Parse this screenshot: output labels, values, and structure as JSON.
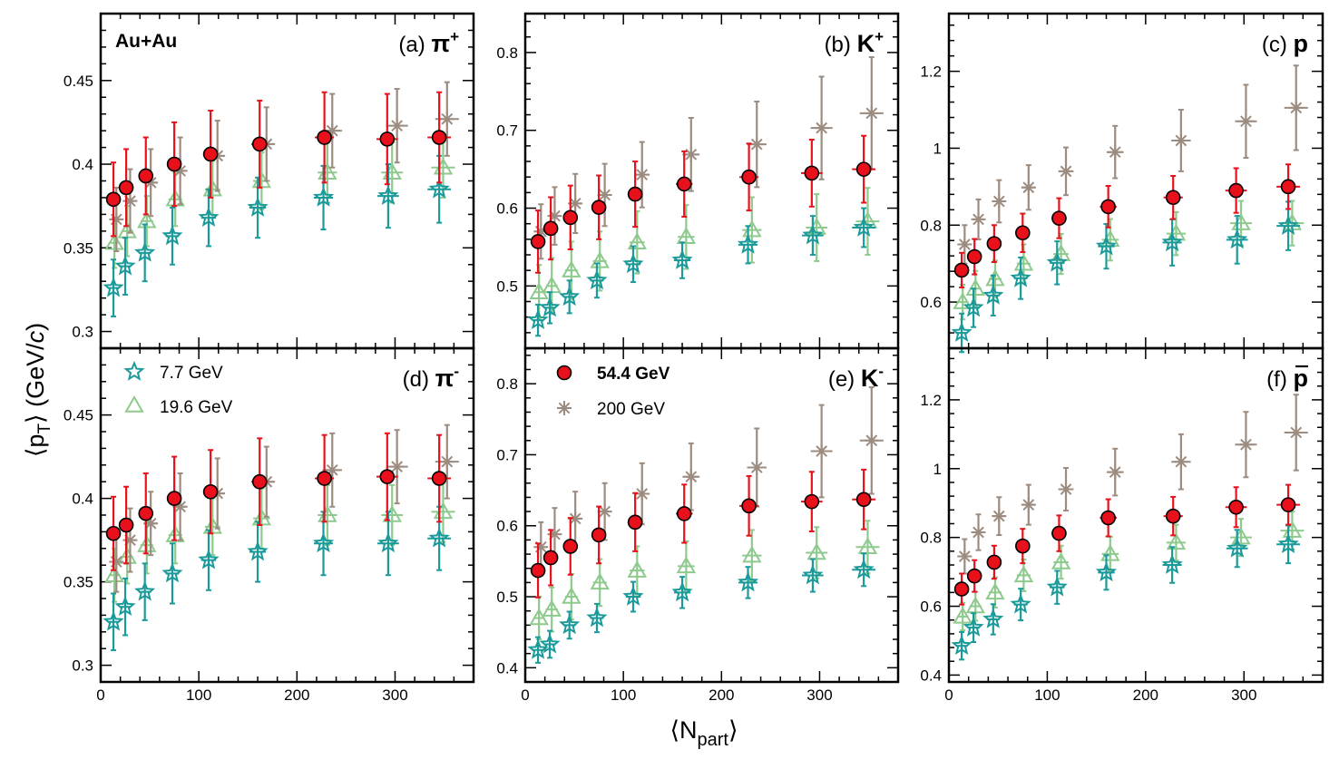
{
  "figure": {
    "y_axis_title": {
      "open": "⟨p",
      "sub": "T",
      "close": "⟩ (GeV/",
      "italic": "c",
      "end": ")"
    },
    "x_axis_title": {
      "open": "⟨N",
      "sub": "part",
      "close": "⟩"
    },
    "system_label": "Au+Au"
  },
  "legend": {
    "e77": "7.7 GeV",
    "e196": "19.6 GeV",
    "e544": "54.4 GeV",
    "e200": "200 GeV"
  },
  "colors": {
    "e77": "#1a9a9a",
    "e196": "#8ec98e",
    "e544": "#e8101a",
    "e200": "#9c8c80",
    "e544_legend_text": "#e8101a"
  },
  "chart_data": [
    {
      "id": "a",
      "type": "scatter",
      "label": "(a)",
      "particle": "π",
      "charge": "+",
      "xlabel": "⟨N_part⟩",
      "ylabel": "⟨p_T⟩ (GeV/c)",
      "xlim": [
        0,
        380
      ],
      "ylim": [
        0.29,
        0.49
      ],
      "xticks": [],
      "yticks": [
        0.3,
        0.35,
        0.4,
        0.45
      ],
      "ytick_labels": [
        "0.3",
        "0.35",
        "0.4",
        "0.45"
      ],
      "series": [
        {
          "key": "e77",
          "marker": "star",
          "x": [
            13,
            25,
            45,
            73,
            110,
            160,
            227,
            293,
            345
          ],
          "y": [
            0.326,
            0.339,
            0.347,
            0.357,
            0.368,
            0.374,
            0.38,
            0.381,
            0.385
          ],
          "err": [
            0.017,
            0.017,
            0.017,
            0.017,
            0.017,
            0.018,
            0.019,
            0.019,
            0.02
          ]
        },
        {
          "key": "e196",
          "marker": "triangle",
          "x": [
            14,
            27,
            47,
            76,
            114,
            164,
            231,
            297,
            349
          ],
          "y": [
            0.353,
            0.36,
            0.366,
            0.379,
            0.385,
            0.39,
            0.395,
            0.395,
            0.398
          ],
          "err": [
            0.015,
            0.015,
            0.015,
            0.016,
            0.017,
            0.017,
            0.018,
            0.018,
            0.018
          ]
        },
        {
          "key": "e544",
          "marker": "circle",
          "x": [
            13,
            26,
            46,
            75,
            112,
            162,
            228,
            292,
            345
          ],
          "y": [
            0.379,
            0.386,
            0.393,
            0.4,
            0.406,
            0.412,
            0.416,
            0.415,
            0.416
          ],
          "err": [
            0.022,
            0.023,
            0.023,
            0.025,
            0.026,
            0.026,
            0.027,
            0.027,
            0.027
          ]
        },
        {
          "key": "e200",
          "marker": "asterisk",
          "x": [
            16,
            30,
            51,
            81,
            119,
            169,
            236,
            302,
            353
          ],
          "y": [
            0.367,
            0.378,
            0.389,
            0.396,
            0.405,
            0.412,
            0.42,
            0.423,
            0.427
          ],
          "err": [
            0.019,
            0.019,
            0.02,
            0.02,
            0.021,
            0.022,
            0.022,
            0.022,
            0.022
          ]
        }
      ]
    },
    {
      "id": "b",
      "type": "scatter",
      "label": "(b)",
      "particle": "K",
      "charge": "+",
      "xlabel": "⟨N_part⟩",
      "ylabel": "⟨p_T⟩ (GeV/c)",
      "xlim": [
        0,
        380
      ],
      "ylim": [
        0.42,
        0.85
      ],
      "xticks": [],
      "yticks": [
        0.5,
        0.6,
        0.7,
        0.8
      ],
      "ytick_labels": [
        "0.5",
        "0.6",
        "0.7",
        "0.8"
      ],
      "series": [
        {
          "key": "e77",
          "marker": "star",
          "x": [
            13,
            25,
            45,
            73,
            110,
            160,
            227,
            293,
            345
          ],
          "y": [
            0.456,
            0.472,
            0.486,
            0.507,
            0.528,
            0.533,
            0.553,
            0.565,
            0.575
          ],
          "err": [
            0.02,
            0.02,
            0.021,
            0.022,
            0.023,
            0.023,
            0.024,
            0.025,
            0.025
          ]
        },
        {
          "key": "e196",
          "marker": "triangle",
          "x": [
            14,
            27,
            47,
            76,
            114,
            164,
            231,
            297,
            349
          ],
          "y": [
            0.492,
            0.5,
            0.52,
            0.532,
            0.556,
            0.563,
            0.572,
            0.575,
            0.583
          ],
          "err": [
            0.035,
            0.036,
            0.037,
            0.038,
            0.04,
            0.041,
            0.042,
            0.043,
            0.043
          ]
        },
        {
          "key": "e544",
          "marker": "circle",
          "x": [
            13,
            26,
            46,
            75,
            112,
            162,
            228,
            292,
            345
          ],
          "y": [
            0.557,
            0.574,
            0.588,
            0.601,
            0.618,
            0.631,
            0.64,
            0.645,
            0.65
          ],
          "err": [
            0.04,
            0.04,
            0.041,
            0.041,
            0.042,
            0.042,
            0.043,
            0.043,
            0.043
          ]
        },
        {
          "key": "e200",
          "marker": "asterisk",
          "x": [
            16,
            30,
            51,
            81,
            119,
            169,
            236,
            302,
            353
          ],
          "y": [
            0.57,
            0.59,
            0.606,
            0.617,
            0.643,
            0.669,
            0.682,
            0.703,
            0.722
          ],
          "err": [
            0.035,
            0.037,
            0.038,
            0.04,
            0.042,
            0.047,
            0.055,
            0.066,
            0.072
          ]
        }
      ]
    },
    {
      "id": "c",
      "type": "scatter",
      "label": "(c)",
      "particle": "p",
      "charge": "",
      "xlabel": "⟨N_part⟩",
      "ylabel": "⟨p_T⟩ (GeV/c)",
      "xlim": [
        0,
        380
      ],
      "ylim": [
        0.48,
        1.35
      ],
      "xticks": [],
      "yticks": [
        0.6,
        0.8,
        1.0,
        1.2
      ],
      "ytick_labels": [
        "0.6",
        "0.8",
        "1",
        "1.2"
      ],
      "series": [
        {
          "key": "e77",
          "marker": "star",
          "x": [
            13,
            25,
            45,
            73,
            110,
            160,
            227,
            293,
            345
          ],
          "y": [
            0.52,
            0.585,
            0.617,
            0.662,
            0.702,
            0.745,
            0.755,
            0.762,
            0.798
          ],
          "err": [
            0.05,
            0.05,
            0.052,
            0.054,
            0.056,
            0.058,
            0.06,
            0.062,
            0.063
          ]
        },
        {
          "key": "e196",
          "marker": "triangle",
          "x": [
            14,
            27,
            47,
            76,
            114,
            164,
            231,
            297,
            349
          ],
          "y": [
            0.6,
            0.635,
            0.66,
            0.7,
            0.725,
            0.762,
            0.778,
            0.805,
            0.805
          ],
          "err": [
            0.045,
            0.046,
            0.048,
            0.05,
            0.052,
            0.054,
            0.056,
            0.058,
            0.058
          ]
        },
        {
          "key": "e544",
          "marker": "circle",
          "x": [
            13,
            26,
            46,
            75,
            112,
            162,
            228,
            292,
            345
          ],
          "y": [
            0.683,
            0.718,
            0.752,
            0.78,
            0.818,
            0.848,
            0.872,
            0.89,
            0.9
          ],
          "err": [
            0.045,
            0.046,
            0.048,
            0.05,
            0.052,
            0.054,
            0.056,
            0.058,
            0.058
          ]
        },
        {
          "key": "e200",
          "marker": "asterisk",
          "x": [
            16,
            30,
            51,
            81,
            119,
            169,
            236,
            302,
            353
          ],
          "y": [
            0.75,
            0.815,
            0.862,
            0.898,
            0.94,
            0.99,
            1.02,
            1.07,
            1.105
          ],
          "err": [
            0.05,
            0.052,
            0.055,
            0.058,
            0.062,
            0.068,
            0.08,
            0.095,
            0.11
          ]
        }
      ]
    },
    {
      "id": "d",
      "type": "scatter",
      "label": "(d)",
      "particle": "π",
      "charge": "-",
      "xlabel": "⟨N_part⟩",
      "ylabel": "⟨p_T⟩ (GeV/c)",
      "xlim": [
        0,
        380
      ],
      "ylim": [
        0.29,
        0.49
      ],
      "xticks": [
        0,
        100,
        200,
        300
      ],
      "xtick_labels": [
        "0",
        "100",
        "200",
        "300"
      ],
      "yticks": [
        0.3,
        0.35,
        0.4,
        0.45
      ],
      "ytick_labels": [
        "0.3",
        "0.35",
        "0.4",
        "0.45"
      ],
      "series": [
        {
          "key": "e77",
          "marker": "star",
          "x": [
            13,
            25,
            45,
            73,
            110,
            160,
            227,
            293,
            345
          ],
          "y": [
            0.326,
            0.335,
            0.344,
            0.355,
            0.363,
            0.368,
            0.373,
            0.373,
            0.376
          ],
          "err": [
            0.017,
            0.017,
            0.017,
            0.018,
            0.018,
            0.018,
            0.019,
            0.019,
            0.019
          ]
        },
        {
          "key": "e196",
          "marker": "triangle",
          "x": [
            14,
            27,
            47,
            76,
            114,
            164,
            231,
            297,
            349
          ],
          "y": [
            0.354,
            0.365,
            0.372,
            0.378,
            0.383,
            0.388,
            0.39,
            0.39,
            0.392
          ],
          "err": [
            0.016,
            0.016,
            0.017,
            0.017,
            0.017,
            0.018,
            0.018,
            0.018,
            0.018
          ]
        },
        {
          "key": "e544",
          "marker": "circle",
          "x": [
            13,
            26,
            46,
            75,
            112,
            162,
            228,
            292,
            345
          ],
          "y": [
            0.379,
            0.384,
            0.391,
            0.4,
            0.404,
            0.41,
            0.412,
            0.413,
            0.412
          ],
          "err": [
            0.022,
            0.023,
            0.024,
            0.025,
            0.025,
            0.026,
            0.026,
            0.026,
            0.026
          ]
        },
        {
          "key": "e200",
          "marker": "asterisk",
          "x": [
            16,
            30,
            51,
            81,
            119,
            169,
            236,
            302,
            353
          ],
          "y": [
            0.362,
            0.375,
            0.385,
            0.395,
            0.403,
            0.41,
            0.417,
            0.419,
            0.422
          ],
          "err": [
            0.018,
            0.019,
            0.019,
            0.02,
            0.021,
            0.021,
            0.022,
            0.022,
            0.022
          ]
        }
      ]
    },
    {
      "id": "e",
      "type": "scatter",
      "label": "(e)",
      "particle": "K",
      "charge": "-",
      "xlabel": "⟨N_part⟩",
      "ylabel": "⟨p_T⟩ (GeV/c)",
      "xlim": [
        0,
        380
      ],
      "ylim": [
        0.38,
        0.85
      ],
      "xticks": [
        0,
        100,
        200,
        300
      ],
      "xtick_labels": [
        "0",
        "100",
        "200",
        "300"
      ],
      "yticks": [
        0.4,
        0.5,
        0.6,
        0.7,
        0.8
      ],
      "ytick_labels": [
        "0.4",
        "0.5",
        "0.6",
        "0.7",
        "0.8"
      ],
      "series": [
        {
          "key": "e77",
          "marker": "star",
          "x": [
            13,
            25,
            45,
            73,
            110,
            160,
            227,
            293,
            345
          ],
          "y": [
            0.425,
            0.433,
            0.46,
            0.47,
            0.5,
            0.506,
            0.52,
            0.53,
            0.538
          ],
          "err": [
            0.018,
            0.019,
            0.019,
            0.02,
            0.021,
            0.022,
            0.022,
            0.023,
            0.023
          ]
        },
        {
          "key": "e196",
          "marker": "triangle",
          "x": [
            14,
            27,
            47,
            76,
            114,
            164,
            231,
            297,
            349
          ],
          "y": [
            0.47,
            0.482,
            0.5,
            0.52,
            0.537,
            0.543,
            0.558,
            0.562,
            0.57
          ],
          "err": [
            0.03,
            0.031,
            0.032,
            0.033,
            0.034,
            0.035,
            0.036,
            0.036,
            0.037
          ]
        },
        {
          "key": "e544",
          "marker": "circle",
          "x": [
            13,
            26,
            46,
            75,
            112,
            162,
            228,
            292,
            345
          ],
          "y": [
            0.537,
            0.555,
            0.571,
            0.587,
            0.605,
            0.617,
            0.628,
            0.634,
            0.637
          ],
          "err": [
            0.038,
            0.039,
            0.04,
            0.04,
            0.041,
            0.041,
            0.042,
            0.042,
            0.042
          ]
        },
        {
          "key": "e200",
          "marker": "asterisk",
          "x": [
            16,
            30,
            51,
            81,
            119,
            169,
            236,
            302,
            353
          ],
          "y": [
            0.57,
            0.588,
            0.61,
            0.62,
            0.645,
            0.669,
            0.682,
            0.705,
            0.72
          ],
          "err": [
            0.035,
            0.037,
            0.038,
            0.04,
            0.043,
            0.047,
            0.055,
            0.065,
            0.075
          ]
        }
      ]
    },
    {
      "id": "f",
      "type": "scatter",
      "label": "(f)",
      "particle": "p",
      "charge": "",
      "overline": true,
      "xlabel": "⟨N_part⟩",
      "ylabel": "⟨p_T⟩ (GeV/c)",
      "xlim": [
        0,
        380
      ],
      "ylim": [
        0.38,
        1.35
      ],
      "xticks": [
        0,
        100,
        200,
        300
      ],
      "xtick_labels": [
        "0",
        "100",
        "200",
        "300"
      ],
      "yticks": [
        0.4,
        0.6,
        0.8,
        1.0,
        1.2
      ],
      "ytick_labels": [
        "0.4",
        "0.6",
        "0.8",
        "1",
        "1.2"
      ],
      "series": [
        {
          "key": "e77",
          "marker": "star",
          "x": [
            13,
            25,
            45,
            73,
            110,
            160,
            227,
            293,
            345
          ],
          "y": [
            0.485,
            0.538,
            0.562,
            0.605,
            0.655,
            0.698,
            0.72,
            0.768,
            0.78
          ],
          "err": [
            0.04,
            0.042,
            0.044,
            0.046,
            0.048,
            0.05,
            0.052,
            0.054,
            0.055
          ]
        },
        {
          "key": "e196",
          "marker": "triangle",
          "x": [
            14,
            27,
            47,
            76,
            114,
            164,
            231,
            297,
            349
          ],
          "y": [
            0.57,
            0.6,
            0.64,
            0.69,
            0.728,
            0.752,
            0.785,
            0.8,
            0.82
          ],
          "err": [
            0.04,
            0.042,
            0.044,
            0.046,
            0.048,
            0.05,
            0.052,
            0.054,
            0.055
          ]
        },
        {
          "key": "e544",
          "marker": "circle",
          "x": [
            13,
            26,
            46,
            75,
            112,
            162,
            228,
            292,
            345
          ],
          "y": [
            0.65,
            0.688,
            0.728,
            0.775,
            0.812,
            0.857,
            0.862,
            0.888,
            0.895
          ],
          "err": [
            0.045,
            0.046,
            0.048,
            0.05,
            0.052,
            0.054,
            0.056,
            0.058,
            0.058
          ]
        },
        {
          "key": "e200",
          "marker": "asterisk",
          "x": [
            16,
            30,
            51,
            81,
            119,
            169,
            236,
            302,
            353
          ],
          "y": [
            0.745,
            0.815,
            0.862,
            0.895,
            0.94,
            0.99,
            1.02,
            1.07,
            1.105
          ],
          "err": [
            0.05,
            0.052,
            0.055,
            0.058,
            0.062,
            0.068,
            0.08,
            0.095,
            0.11
          ]
        }
      ]
    }
  ]
}
